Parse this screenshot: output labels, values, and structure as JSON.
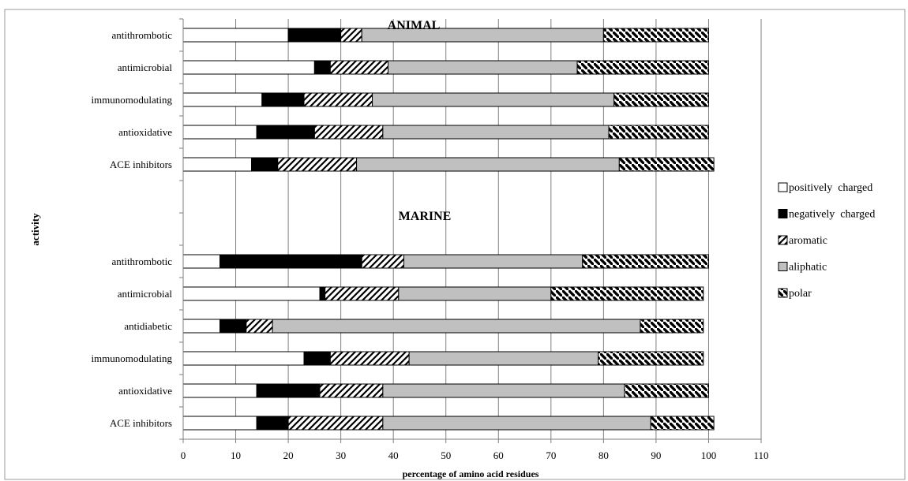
{
  "chart_data": {
    "type": "bar",
    "stacked": true,
    "orientation": "horizontal",
    "xlabel": "percentage of amino acid residues",
    "ylabel": "activity",
    "xlim": [
      0,
      110
    ],
    "xticks": [
      0,
      10,
      20,
      30,
      40,
      50,
      60,
      70,
      80,
      90,
      100,
      110
    ],
    "grid": "vertical",
    "legend_position": "right",
    "groups": [
      {
        "title": "ANIMAL",
        "categories": [
          "antithrombotic",
          "antimicrobial",
          "immunomodulating",
          "antioxidative",
          "ACE inhibitors"
        ],
        "series": [
          {
            "name": "positively  charged",
            "values": [
              20,
              25,
              15,
              14,
              13
            ]
          },
          {
            "name": "negatively  charged",
            "values": [
              10,
              3,
              8,
              11,
              5
            ]
          },
          {
            "name": "aromatic",
            "values": [
              4,
              11,
              13,
              13,
              15
            ]
          },
          {
            "name": "aliphatic",
            "values": [
              46,
              36,
              46,
              43,
              50
            ]
          },
          {
            "name": "polar",
            "values": [
              20,
              25,
              18,
              19,
              18
            ]
          }
        ]
      },
      {
        "title": "MARINE",
        "categories": [
          "antithrombotic",
          "antimicrobial",
          "antidiabetic",
          "immunomodulating",
          "antioxidative",
          "ACE inhibitors"
        ],
        "series": [
          {
            "name": "positively  charged",
            "values": [
              7,
              26,
              7,
              23,
              14,
              14
            ]
          },
          {
            "name": "negatively  charged",
            "values": [
              27,
              1,
              5,
              5,
              12,
              6
            ]
          },
          {
            "name": "aromatic",
            "values": [
              8,
              14,
              5,
              15,
              12,
              18
            ]
          },
          {
            "name": "aliphatic",
            "values": [
              34,
              29,
              70,
              36,
              46,
              51
            ]
          },
          {
            "name": "polar",
            "values": [
              24,
              29,
              12,
              20,
              16,
              12
            ]
          }
        ]
      }
    ],
    "legend": [
      {
        "name": "positively  charged",
        "fill": "white"
      },
      {
        "name": "negatively  charged",
        "fill": "black"
      },
      {
        "name": "aromatic",
        "fill": "hatch-light"
      },
      {
        "name": "aliphatic",
        "fill": "gray"
      },
      {
        "name": "polar",
        "fill": "hatch-dark"
      }
    ],
    "colors": {
      "positive": "#ffffff",
      "negative": "#000000",
      "aliphatic": "#c0c0c0",
      "border": "#000000",
      "grid": "#7f7f7f"
    }
  }
}
